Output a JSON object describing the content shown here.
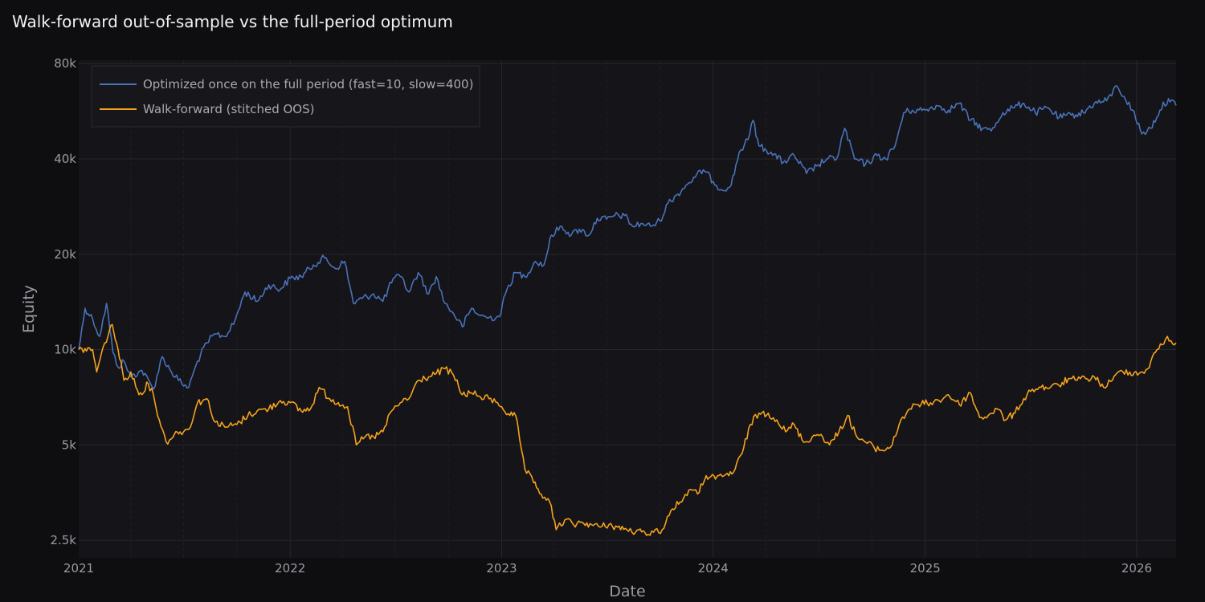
{
  "title": "Walk-forward out-of-sample vs the full-period optimum",
  "colors": {
    "background": "#0e0e11",
    "plot_background": "#141419",
    "grid": "#26262d",
    "text": "#9a9aa2",
    "title": "#f2f2f2",
    "series_full": "#4a72b8",
    "series_wf": "#f5a21c"
  },
  "chart_data": {
    "type": "line",
    "title": "Walk-forward out-of-sample vs the full-period optimum",
    "xlabel": "Date",
    "ylabel": "Equity",
    "y_scale": "log",
    "ylim": [
      2200,
      82000
    ],
    "xlim": [
      "2021-01-01",
      "2026-03-10"
    ],
    "grid": true,
    "legend_position": "top-left",
    "y_ticks": [
      {
        "value": 2500,
        "label": "2.5k"
      },
      {
        "value": 5000,
        "label": "5k"
      },
      {
        "value": 10000,
        "label": "10k"
      },
      {
        "value": 20000,
        "label": "20k"
      },
      {
        "value": 40000,
        "label": "40k"
      },
      {
        "value": 80000,
        "label": "80k"
      }
    ],
    "x_ticks": [
      {
        "value": "2021-01-01",
        "label": "2021"
      },
      {
        "value": "2022-01-01",
        "label": "2022"
      },
      {
        "value": "2023-01-01",
        "label": "2023"
      },
      {
        "value": "2024-01-01",
        "label": "2024"
      },
      {
        "value": "2025-01-01",
        "label": "2025"
      },
      {
        "value": "2026-01-01",
        "label": "2026"
      }
    ],
    "series": [
      {
        "name": "Optimized once on the full period (fast=10, slow=400)",
        "color": "#4a72b8",
        "points": [
          [
            "2021-01-01",
            10000
          ],
          [
            "2021-01-12",
            13500
          ],
          [
            "2021-01-25",
            12500
          ],
          [
            "2021-02-06",
            11000
          ],
          [
            "2021-02-18",
            14000
          ],
          [
            "2021-03-01",
            9800
          ],
          [
            "2021-03-10",
            8800
          ],
          [
            "2021-03-20",
            9200
          ],
          [
            "2021-04-01",
            8200
          ],
          [
            "2021-04-20",
            8600
          ],
          [
            "2021-05-10",
            7500
          ],
          [
            "2021-05-25",
            9500
          ],
          [
            "2021-06-10",
            8500
          ],
          [
            "2021-06-28",
            7800
          ],
          [
            "2021-07-10",
            7600
          ],
          [
            "2021-07-25",
            9200
          ],
          [
            "2021-08-10",
            10500
          ],
          [
            "2021-08-25",
            11200
          ],
          [
            "2021-09-10",
            11000
          ],
          [
            "2021-09-25",
            12000
          ],
          [
            "2021-10-15",
            15200
          ],
          [
            "2021-11-05",
            14200
          ],
          [
            "2021-11-25",
            16000
          ],
          [
            "2021-12-15",
            15500
          ],
          [
            "2022-01-01",
            16800
          ],
          [
            "2022-01-20",
            17000
          ],
          [
            "2022-02-10",
            18500
          ],
          [
            "2022-03-01",
            19500
          ],
          [
            "2022-03-20",
            18000
          ],
          [
            "2022-04-05",
            19000
          ],
          [
            "2022-04-20",
            14000
          ],
          [
            "2022-05-05",
            14500
          ],
          [
            "2022-05-25",
            15000
          ],
          [
            "2022-06-10",
            14200
          ],
          [
            "2022-06-28",
            16800
          ],
          [
            "2022-07-10",
            17000
          ],
          [
            "2022-07-25",
            15200
          ],
          [
            "2022-08-10",
            17500
          ],
          [
            "2022-08-28",
            15000
          ],
          [
            "2022-09-10",
            17000
          ],
          [
            "2022-09-25",
            14000
          ],
          [
            "2022-10-10",
            13000
          ],
          [
            "2022-10-25",
            11800
          ],
          [
            "2022-11-10",
            13500
          ],
          [
            "2022-11-25",
            12800
          ],
          [
            "2022-12-10",
            12600
          ],
          [
            "2022-12-28",
            12700
          ],
          [
            "2023-01-10",
            15500
          ],
          [
            "2023-01-25",
            17500
          ],
          [
            "2023-02-10",
            17000
          ],
          [
            "2023-02-28",
            19000
          ],
          [
            "2023-03-15",
            18500
          ],
          [
            "2023-03-28",
            23000
          ],
          [
            "2023-04-15",
            24500
          ],
          [
            "2023-05-01",
            23000
          ],
          [
            "2023-05-15",
            24000
          ],
          [
            "2023-06-01",
            23000
          ],
          [
            "2023-06-15",
            26000
          ],
          [
            "2023-07-01",
            25800
          ],
          [
            "2023-07-15",
            26500
          ],
          [
            "2023-08-01",
            26500
          ],
          [
            "2023-08-15",
            24500
          ],
          [
            "2023-09-01",
            25000
          ],
          [
            "2023-09-15",
            24500
          ],
          [
            "2023-10-01",
            25500
          ],
          [
            "2023-10-15",
            29000
          ],
          [
            "2023-11-01",
            31000
          ],
          [
            "2023-11-15",
            33000
          ],
          [
            "2023-12-01",
            35000
          ],
          [
            "2023-12-15",
            37000
          ],
          [
            "2024-01-01",
            34000
          ],
          [
            "2024-01-15",
            32000
          ],
          [
            "2024-02-01",
            33000
          ],
          [
            "2024-02-15",
            42000
          ],
          [
            "2024-03-01",
            46000
          ],
          [
            "2024-03-10",
            53000
          ],
          [
            "2024-03-20",
            44000
          ],
          [
            "2024-04-10",
            42000
          ],
          [
            "2024-05-01",
            39000
          ],
          [
            "2024-05-20",
            41000
          ],
          [
            "2024-06-10",
            36000
          ],
          [
            "2024-06-28",
            38000
          ],
          [
            "2024-07-15",
            40000
          ],
          [
            "2024-08-01",
            40000
          ],
          [
            "2024-08-15",
            50000
          ],
          [
            "2024-09-01",
            40000
          ],
          [
            "2024-09-20",
            38500
          ],
          [
            "2024-10-10",
            41000
          ],
          [
            "2024-10-25",
            40000
          ],
          [
            "2024-11-10",
            44000
          ],
          [
            "2024-11-25",
            56000
          ],
          [
            "2024-12-10",
            57000
          ],
          [
            "2025-01-01",
            57000
          ],
          [
            "2025-01-20",
            59000
          ],
          [
            "2025-02-10",
            57000
          ],
          [
            "2025-03-01",
            60000
          ],
          [
            "2025-03-20",
            53000
          ],
          [
            "2025-04-10",
            50000
          ],
          [
            "2025-04-25",
            49000
          ],
          [
            "2025-05-15",
            56000
          ],
          [
            "2025-06-01",
            58000
          ],
          [
            "2025-06-20",
            60000
          ],
          [
            "2025-07-10",
            56000
          ],
          [
            "2025-08-01",
            58000
          ],
          [
            "2025-08-20",
            54000
          ],
          [
            "2025-09-10",
            55000
          ],
          [
            "2025-10-01",
            56000
          ],
          [
            "2025-10-20",
            60000
          ],
          [
            "2025-11-10",
            61000
          ],
          [
            "2025-11-28",
            68000
          ],
          [
            "2025-12-10",
            63000
          ],
          [
            "2025-12-25",
            57000
          ],
          [
            "2026-01-10",
            48000
          ],
          [
            "2026-01-25",
            50000
          ],
          [
            "2026-02-10",
            57000
          ],
          [
            "2026-02-25",
            62000
          ],
          [
            "2026-03-10",
            59000
          ]
        ]
      },
      {
        "name": "Walk-forward (stitched OOS)",
        "color": "#f5a21c",
        "points": [
          [
            "2021-01-01",
            10000
          ],
          [
            "2021-01-25",
            10000
          ],
          [
            "2021-02-01",
            8500
          ],
          [
            "2021-02-15",
            10500
          ],
          [
            "2021-02-28",
            12000
          ],
          [
            "2021-03-10",
            10000
          ],
          [
            "2021-03-20",
            8000
          ],
          [
            "2021-04-01",
            8500
          ],
          [
            "2021-04-15",
            7200
          ],
          [
            "2021-05-01",
            7800
          ],
          [
            "2021-05-10",
            7200
          ],
          [
            "2021-05-20",
            6000
          ],
          [
            "2021-06-01",
            5100
          ],
          [
            "2021-06-15",
            5400
          ],
          [
            "2021-06-25",
            5500
          ],
          [
            "2021-07-10",
            5600
          ],
          [
            "2021-07-25",
            6800
          ],
          [
            "2021-08-10",
            7000
          ],
          [
            "2021-08-25",
            5900
          ],
          [
            "2021-09-10",
            5700
          ],
          [
            "2021-10-01",
            5800
          ],
          [
            "2021-10-20",
            6200
          ],
          [
            "2021-11-05",
            6400
          ],
          [
            "2021-11-25",
            6500
          ],
          [
            "2021-12-15",
            6900
          ],
          [
            "2022-01-01",
            6800
          ],
          [
            "2022-01-20",
            6400
          ],
          [
            "2022-02-05",
            6500
          ],
          [
            "2022-02-20",
            7600
          ],
          [
            "2022-03-10",
            7000
          ],
          [
            "2022-03-25",
            6800
          ],
          [
            "2022-04-10",
            6600
          ],
          [
            "2022-04-25",
            5000
          ],
          [
            "2022-05-10",
            5300
          ],
          [
            "2022-05-25",
            5300
          ],
          [
            "2022-06-10",
            5500
          ],
          [
            "2022-06-25",
            6400
          ],
          [
            "2022-07-10",
            6800
          ],
          [
            "2022-07-25",
            7000
          ],
          [
            "2022-08-10",
            8000
          ],
          [
            "2022-08-28",
            8200
          ],
          [
            "2022-09-10",
            8400
          ],
          [
            "2022-09-25",
            8700
          ],
          [
            "2022-10-10",
            8300
          ],
          [
            "2022-10-25",
            7200
          ],
          [
            "2022-11-10",
            7300
          ],
          [
            "2022-11-25",
            7100
          ],
          [
            "2022-12-10",
            7000
          ],
          [
            "2022-12-25",
            6800
          ],
          [
            "2023-01-01",
            6600
          ],
          [
            "2023-01-15",
            6200
          ],
          [
            "2023-01-25",
            6200
          ],
          [
            "2023-02-01",
            5200
          ],
          [
            "2023-02-10",
            4200
          ],
          [
            "2023-02-25",
            3800
          ],
          [
            "2023-03-10",
            3500
          ],
          [
            "2023-03-25",
            3300
          ],
          [
            "2023-04-05",
            2700
          ],
          [
            "2023-04-20",
            2900
          ],
          [
            "2023-05-05",
            2800
          ],
          [
            "2023-05-20",
            2850
          ],
          [
            "2023-06-05",
            2800
          ],
          [
            "2023-06-20",
            2750
          ],
          [
            "2023-07-05",
            2800
          ],
          [
            "2023-07-20",
            2750
          ],
          [
            "2023-08-05",
            2700
          ],
          [
            "2023-08-20",
            2650
          ],
          [
            "2023-09-05",
            2650
          ],
          [
            "2023-09-20",
            2650
          ],
          [
            "2023-10-05",
            2700
          ],
          [
            "2023-10-20",
            3100
          ],
          [
            "2023-11-05",
            3300
          ],
          [
            "2023-11-20",
            3600
          ],
          [
            "2023-12-05",
            3500
          ],
          [
            "2023-12-20",
            4000
          ],
          [
            "2024-01-05",
            3900
          ],
          [
            "2024-01-20",
            4000
          ],
          [
            "2024-02-05",
            4100
          ],
          [
            "2024-02-20",
            4700
          ],
          [
            "2024-03-05",
            5800
          ],
          [
            "2024-03-20",
            6300
          ],
          [
            "2024-04-05",
            6300
          ],
          [
            "2024-04-20",
            6000
          ],
          [
            "2024-05-05",
            5500
          ],
          [
            "2024-05-20",
            5800
          ],
          [
            "2024-06-05",
            5100
          ],
          [
            "2024-06-20",
            5300
          ],
          [
            "2024-07-05",
            5400
          ],
          [
            "2024-07-20",
            5000
          ],
          [
            "2024-08-05",
            5500
          ],
          [
            "2024-08-20",
            6200
          ],
          [
            "2024-09-05",
            5300
          ],
          [
            "2024-09-20",
            5100
          ],
          [
            "2024-10-05",
            4900
          ],
          [
            "2024-10-20",
            4800
          ],
          [
            "2024-11-05",
            5000
          ],
          [
            "2024-11-20",
            6000
          ],
          [
            "2024-12-05",
            6500
          ],
          [
            "2024-12-20",
            6700
          ],
          [
            "2025-01-10",
            6800
          ],
          [
            "2025-01-25",
            6900
          ],
          [
            "2025-02-10",
            7200
          ],
          [
            "2025-03-01",
            6700
          ],
          [
            "2025-03-20",
            7300
          ],
          [
            "2025-04-05",
            6100
          ],
          [
            "2025-04-20",
            6200
          ],
          [
            "2025-05-05",
            6500
          ],
          [
            "2025-05-20",
            6000
          ],
          [
            "2025-06-05",
            6300
          ],
          [
            "2025-06-20",
            7000
          ],
          [
            "2025-07-05",
            7500
          ],
          [
            "2025-07-20",
            7600
          ],
          [
            "2025-08-05",
            7600
          ],
          [
            "2025-08-20",
            7700
          ],
          [
            "2025-09-05",
            8100
          ],
          [
            "2025-09-20",
            8000
          ],
          [
            "2025-10-05",
            8100
          ],
          [
            "2025-10-20",
            8200
          ],
          [
            "2025-11-05",
            7600
          ],
          [
            "2025-11-20",
            8000
          ],
          [
            "2025-12-05",
            8600
          ],
          [
            "2025-12-20",
            8500
          ],
          [
            "2026-01-05",
            8400
          ],
          [
            "2026-01-20",
            8700
          ],
          [
            "2026-02-05",
            10000
          ],
          [
            "2026-02-20",
            10800
          ],
          [
            "2026-03-10",
            10500
          ]
        ]
      }
    ]
  }
}
